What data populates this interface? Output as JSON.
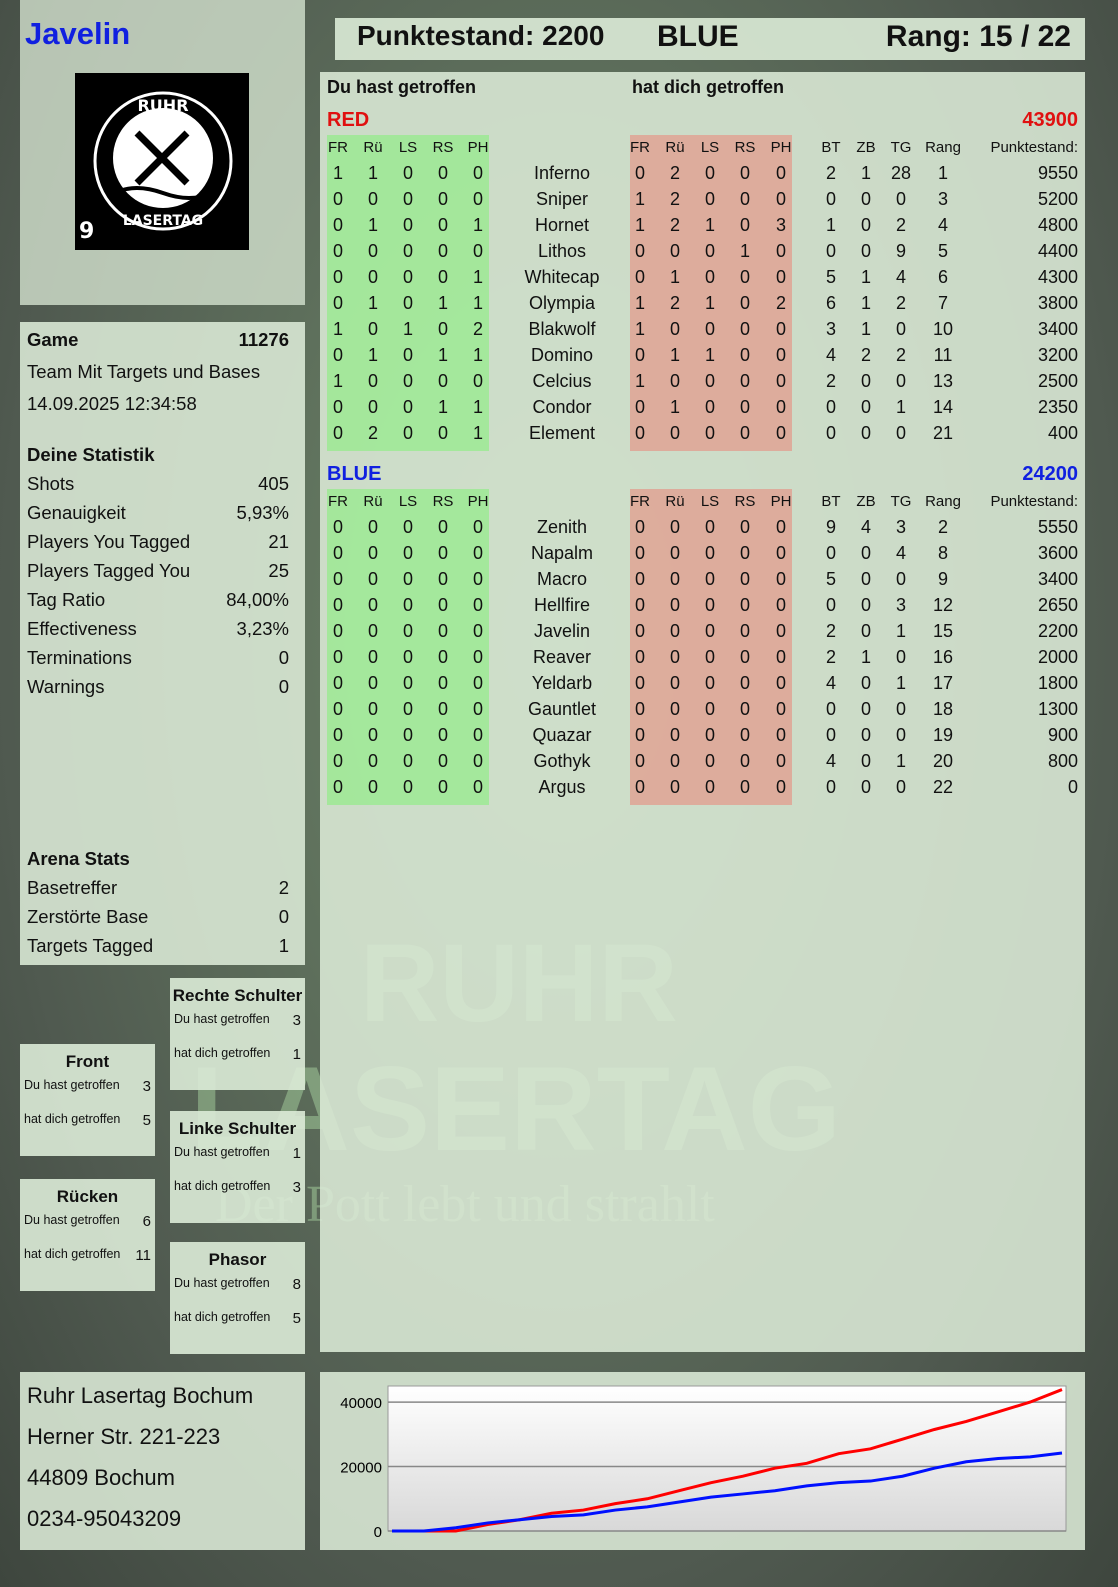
{
  "player": {
    "name": "Javelin",
    "logo_text": "RUHR LASERTAG",
    "logo_number": "9"
  },
  "header": {
    "score_label": "Punktestand: 2200",
    "team": "BLUE",
    "rank_label": "Rang: 15 / 22"
  },
  "table": {
    "you_hit_label": "Du hast getroffen",
    "hit_you_label": "hat dich getroffen",
    "headers": {
      "zones": [
        "FR",
        "Rü",
        "LS",
        "RS",
        "PH"
      ],
      "stats": [
        "BT",
        "ZB",
        "TG",
        "Rang"
      ],
      "score": "Punktestand:"
    },
    "teams": [
      {
        "name": "RED",
        "total": "43900",
        "color": "#e01010",
        "players": [
          {
            "name": "Inferno",
            "you_hit": [
              1,
              1,
              0,
              0,
              0
            ],
            "hit_you": [
              0,
              2,
              0,
              0,
              0
            ],
            "bt": 2,
            "zb": 1,
            "tg": 28,
            "rank": 1,
            "score": 9550
          },
          {
            "name": "Sniper",
            "you_hit": [
              0,
              0,
              0,
              0,
              0
            ],
            "hit_you": [
              1,
              2,
              0,
              0,
              0
            ],
            "bt": 0,
            "zb": 0,
            "tg": 0,
            "rank": 3,
            "score": 5200
          },
          {
            "name": "Hornet",
            "you_hit": [
              0,
              1,
              0,
              0,
              1
            ],
            "hit_you": [
              1,
              2,
              1,
              0,
              3
            ],
            "bt": 1,
            "zb": 0,
            "tg": 2,
            "rank": 4,
            "score": 4800
          },
          {
            "name": "Lithos",
            "you_hit": [
              0,
              0,
              0,
              0,
              0
            ],
            "hit_you": [
              0,
              0,
              0,
              1,
              0
            ],
            "bt": 0,
            "zb": 0,
            "tg": 9,
            "rank": 5,
            "score": 4400
          },
          {
            "name": "Whitecap",
            "you_hit": [
              0,
              0,
              0,
              0,
              1
            ],
            "hit_you": [
              0,
              1,
              0,
              0,
              0
            ],
            "bt": 5,
            "zb": 1,
            "tg": 4,
            "rank": 6,
            "score": 4300
          },
          {
            "name": "Olympia",
            "you_hit": [
              0,
              1,
              0,
              1,
              1
            ],
            "hit_you": [
              1,
              2,
              1,
              0,
              2
            ],
            "bt": 6,
            "zb": 1,
            "tg": 2,
            "rank": 7,
            "score": 3800
          },
          {
            "name": "Blakwolf",
            "you_hit": [
              1,
              0,
              1,
              0,
              2
            ],
            "hit_you": [
              1,
              0,
              0,
              0,
              0
            ],
            "bt": 3,
            "zb": 1,
            "tg": 0,
            "rank": 10,
            "score": 3400
          },
          {
            "name": "Domino",
            "you_hit": [
              0,
              1,
              0,
              1,
              1
            ],
            "hit_you": [
              0,
              1,
              1,
              0,
              0
            ],
            "bt": 4,
            "zb": 2,
            "tg": 2,
            "rank": 11,
            "score": 3200
          },
          {
            "name": "Celcius",
            "you_hit": [
              1,
              0,
              0,
              0,
              0
            ],
            "hit_you": [
              1,
              0,
              0,
              0,
              0
            ],
            "bt": 2,
            "zb": 0,
            "tg": 0,
            "rank": 13,
            "score": 2500
          },
          {
            "name": "Condor",
            "you_hit": [
              0,
              0,
              0,
              1,
              1
            ],
            "hit_you": [
              0,
              1,
              0,
              0,
              0
            ],
            "bt": 0,
            "zb": 0,
            "tg": 1,
            "rank": 14,
            "score": 2350
          },
          {
            "name": "Element",
            "you_hit": [
              0,
              2,
              0,
              0,
              1
            ],
            "hit_you": [
              0,
              0,
              0,
              0,
              0
            ],
            "bt": 0,
            "zb": 0,
            "tg": 0,
            "rank": 21,
            "score": 400
          }
        ]
      },
      {
        "name": "BLUE",
        "total": "24200",
        "color": "#1020e0",
        "players": [
          {
            "name": "Zenith",
            "you_hit": [
              0,
              0,
              0,
              0,
              0
            ],
            "hit_you": [
              0,
              0,
              0,
              0,
              0
            ],
            "bt": 9,
            "zb": 4,
            "tg": 3,
            "rank": 2,
            "score": 5550
          },
          {
            "name": "Napalm",
            "you_hit": [
              0,
              0,
              0,
              0,
              0
            ],
            "hit_you": [
              0,
              0,
              0,
              0,
              0
            ],
            "bt": 0,
            "zb": 0,
            "tg": 4,
            "rank": 8,
            "score": 3600
          },
          {
            "name": "Macro",
            "you_hit": [
              0,
              0,
              0,
              0,
              0
            ],
            "hit_you": [
              0,
              0,
              0,
              0,
              0
            ],
            "bt": 5,
            "zb": 0,
            "tg": 0,
            "rank": 9,
            "score": 3400
          },
          {
            "name": "Hellfire",
            "you_hit": [
              0,
              0,
              0,
              0,
              0
            ],
            "hit_you": [
              0,
              0,
              0,
              0,
              0
            ],
            "bt": 0,
            "zb": 0,
            "tg": 3,
            "rank": 12,
            "score": 2650
          },
          {
            "name": "Javelin",
            "you_hit": [
              0,
              0,
              0,
              0,
              0
            ],
            "hit_you": [
              0,
              0,
              0,
              0,
              0
            ],
            "bt": 2,
            "zb": 0,
            "tg": 1,
            "rank": 15,
            "score": 2200
          },
          {
            "name": "Reaver",
            "you_hit": [
              0,
              0,
              0,
              0,
              0
            ],
            "hit_you": [
              0,
              0,
              0,
              0,
              0
            ],
            "bt": 2,
            "zb": 1,
            "tg": 0,
            "rank": 16,
            "score": 2000
          },
          {
            "name": "Yeldarb",
            "you_hit": [
              0,
              0,
              0,
              0,
              0
            ],
            "hit_you": [
              0,
              0,
              0,
              0,
              0
            ],
            "bt": 4,
            "zb": 0,
            "tg": 1,
            "rank": 17,
            "score": 1800
          },
          {
            "name": "Gauntlet",
            "you_hit": [
              0,
              0,
              0,
              0,
              0
            ],
            "hit_you": [
              0,
              0,
              0,
              0,
              0
            ],
            "bt": 0,
            "zb": 0,
            "tg": 0,
            "rank": 18,
            "score": 1300
          },
          {
            "name": "Quazar",
            "you_hit": [
              0,
              0,
              0,
              0,
              0
            ],
            "hit_you": [
              0,
              0,
              0,
              0,
              0
            ],
            "bt": 0,
            "zb": 0,
            "tg": 0,
            "rank": 19,
            "score": 900
          },
          {
            "name": "Gothyk",
            "you_hit": [
              0,
              0,
              0,
              0,
              0
            ],
            "hit_you": [
              0,
              0,
              0,
              0,
              0
            ],
            "bt": 4,
            "zb": 0,
            "tg": 1,
            "rank": 20,
            "score": 800
          },
          {
            "name": "Argus",
            "you_hit": [
              0,
              0,
              0,
              0,
              0
            ],
            "hit_you": [
              0,
              0,
              0,
              0,
              0
            ],
            "bt": 0,
            "zb": 0,
            "tg": 0,
            "rank": 22,
            "score": 0
          }
        ]
      }
    ]
  },
  "game": {
    "label": "Game",
    "id": "11276",
    "mode": "Team Mit Targets und Bases",
    "datetime": "14.09.2025 12:34:58"
  },
  "stats": {
    "title": "Deine Statistik",
    "rows": [
      {
        "label": "Shots",
        "value": "405"
      },
      {
        "label": "Genauigkeit",
        "value": "5,93%"
      },
      {
        "label": "Players You Tagged",
        "value": "21"
      },
      {
        "label": "Players Tagged You",
        "value": "25"
      },
      {
        "label": "Tag Ratio",
        "value": "84,00%"
      },
      {
        "label": "Effectiveness",
        "value": "3,23%"
      },
      {
        "label": "Terminations",
        "value": "0"
      },
      {
        "label": "Warnings",
        "value": "0"
      }
    ]
  },
  "arena": {
    "title": "Arena Stats",
    "rows": [
      {
        "label": "Basetreffer",
        "value": "2"
      },
      {
        "label": "Zerstörte Base",
        "value": "0"
      },
      {
        "label": "Targets Tagged",
        "value": "1"
      }
    ]
  },
  "hitboxes": {
    "you_hit": "Du hast getroffen",
    "hit_you": "hat dich getroffen",
    "zones": [
      {
        "name": "Front",
        "you_hit": "3",
        "hit_you": "5"
      },
      {
        "name": "Rücken",
        "you_hit": "6",
        "hit_you": "11"
      },
      {
        "name": "Rechte Schulter",
        "you_hit": "3",
        "hit_you": "1"
      },
      {
        "name": "Linke Schulter",
        "you_hit": "1",
        "hit_you": "3"
      },
      {
        "name": "Phasor",
        "you_hit": "8",
        "hit_you": "5"
      }
    ]
  },
  "address": {
    "lines": [
      "Ruhr Lasertag Bochum",
      "Herner Str. 221-223",
      "44809 Bochum",
      "0234-95043209"
    ]
  },
  "watermark": {
    "line1": "RUHR",
    "line2": "LASERTAG",
    "slogan": "Der Pott lebt und strahlt"
  },
  "chart_data": {
    "type": "line",
    "ylim": [
      0,
      45000
    ],
    "yticks": [
      0,
      20000,
      40000
    ],
    "grid": true,
    "series": [
      {
        "color": "#ff0000",
        "values": [
          0,
          0,
          0,
          2000,
          3500,
          5500,
          6500,
          8500,
          10000,
          12500,
          15000,
          17000,
          19500,
          21000,
          24000,
          25500,
          28500,
          31500,
          34000,
          37000,
          40000,
          43900
        ]
      },
      {
        "color": "#0010ff",
        "values": [
          0,
          0,
          1000,
          2500,
          3500,
          4500,
          5000,
          6500,
          7500,
          9000,
          10500,
          11500,
          12500,
          14000,
          15000,
          15500,
          17000,
          19500,
          21500,
          22500,
          23000,
          24200
        ]
      }
    ]
  }
}
